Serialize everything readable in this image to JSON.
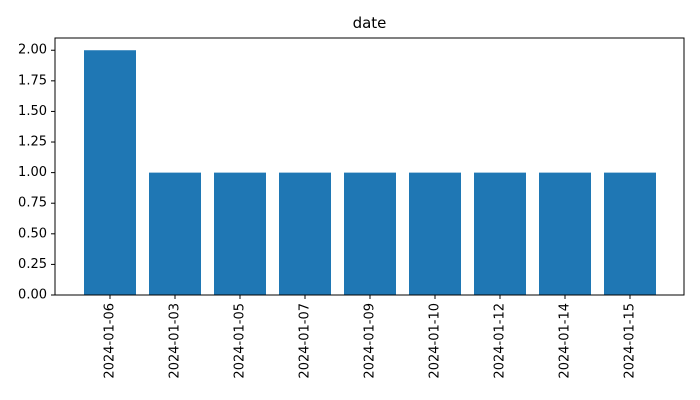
{
  "chart_data": {
    "type": "bar",
    "title": "date",
    "xlabel": "",
    "ylabel": "",
    "categories": [
      "2024-01-06",
      "2024-01-03",
      "2024-01-05",
      "2024-01-07",
      "2024-01-09",
      "2024-01-10",
      "2024-01-12",
      "2024-01-14",
      "2024-01-15"
    ],
    "values": [
      2,
      1,
      1,
      1,
      1,
      1,
      1,
      1,
      1
    ],
    "ylim": [
      0,
      2.1
    ],
    "yticks": [
      "0.00",
      "0.25",
      "0.50",
      "0.75",
      "1.00",
      "1.25",
      "1.50",
      "1.75",
      "2.00"
    ],
    "bar_color": "#1f77b4",
    "grid": false,
    "legend": "none"
  }
}
